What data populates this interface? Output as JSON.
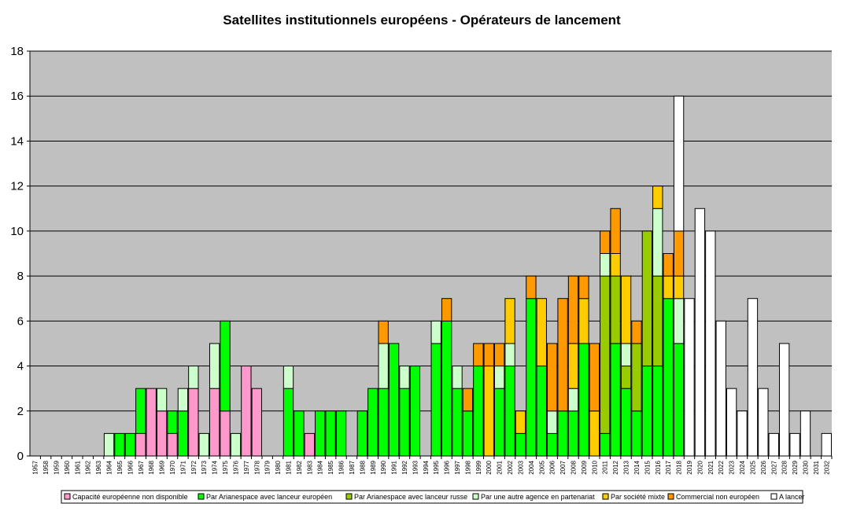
{
  "chart_data": {
    "type": "bar",
    "stacked": true,
    "title": "Satellites institutionnels européens - Opérateurs de lancement",
    "xlabel": "",
    "ylabel": "",
    "ylim": [
      0,
      18
    ],
    "yticks": [
      0,
      2,
      4,
      6,
      8,
      10,
      12,
      14,
      16,
      18
    ],
    "grid": true,
    "legend_position": "bottom",
    "plot_background": "#C0C0C0",
    "categories": [
      "1957",
      "1958",
      "1959",
      "1960",
      "1961",
      "1962",
      "1963",
      "1964",
      "1965",
      "1966",
      "1967",
      "1968",
      "1969",
      "1970",
      "1971",
      "1972",
      "1973",
      "1974",
      "1975",
      "1976",
      "1977",
      "1978",
      "1979",
      "1980",
      "1981",
      "1982",
      "1983",
      "1984",
      "1985",
      "1986",
      "1987",
      "1988",
      "1989",
      "1990",
      "1991",
      "1992",
      "1993",
      "1994",
      "1995",
      "1996",
      "1997",
      "1998",
      "1999",
      "2000",
      "2001",
      "2002",
      "2003",
      "2004",
      "2005",
      "2006",
      "2007",
      "2008",
      "2009",
      "2010",
      "2011",
      "2012",
      "2013",
      "2014",
      "2015",
      "2016",
      "2017",
      "2018",
      "2019",
      "2020",
      "2021",
      "2022",
      "2023",
      "2024",
      "2025",
      "2026",
      "2027",
      "2028",
      "2029",
      "2030",
      "2031",
      "2032"
    ],
    "series": [
      {
        "name": "Capacité européenne non disponible",
        "color": "#FF99CC",
        "values": [
          0,
          0,
          0,
          0,
          0,
          0,
          0,
          0,
          0,
          0,
          1,
          3,
          2,
          1,
          0,
          3,
          0,
          3,
          2,
          0,
          4,
          3,
          0,
          0,
          0,
          0,
          1,
          0,
          0,
          0,
          0,
          0,
          0,
          0,
          0,
          0,
          0,
          0,
          0,
          0,
          0,
          0,
          0,
          0,
          0,
          0,
          0,
          0,
          0,
          0,
          0,
          0,
          0,
          0,
          0,
          0,
          0,
          0,
          0,
          0,
          0,
          0,
          0,
          0,
          0,
          0,
          0,
          0,
          0,
          0,
          0,
          0,
          0,
          0,
          0,
          0
        ]
      },
      {
        "name": "Par Arianespace avec lanceur européen",
        "color": "#00FF00",
        "values": [
          0,
          0,
          0,
          0,
          0,
          0,
          0,
          0,
          1,
          1,
          2,
          0,
          0,
          1,
          2,
          0,
          0,
          0,
          4,
          0,
          0,
          0,
          0,
          0,
          3,
          2,
          0,
          2,
          2,
          2,
          0,
          2,
          3,
          3,
          5,
          3,
          4,
          0,
          5,
          6,
          3,
          2,
          4,
          0,
          3,
          4,
          1,
          7,
          4,
          1,
          2,
          2,
          5,
          0,
          1,
          5,
          3,
          2,
          4,
          4,
          7,
          5,
          0,
          0,
          0,
          0,
          0,
          0,
          0,
          0,
          0,
          0,
          0,
          0,
          0,
          0
        ]
      },
      {
        "name": "Par Arianespace avec lanceur russe",
        "color": "#99CC00",
        "values": [
          0,
          0,
          0,
          0,
          0,
          0,
          0,
          0,
          0,
          0,
          0,
          0,
          0,
          0,
          0,
          0,
          0,
          0,
          0,
          0,
          0,
          0,
          0,
          0,
          0,
          0,
          0,
          0,
          0,
          0,
          0,
          0,
          0,
          0,
          0,
          0,
          0,
          0,
          0,
          0,
          0,
          0,
          0,
          0,
          0,
          0,
          0,
          0,
          0,
          0,
          0,
          0,
          0,
          0,
          7,
          3,
          1,
          3,
          6,
          4,
          0,
          0,
          0,
          0,
          0,
          0,
          0,
          0,
          0,
          0,
          0,
          0,
          0,
          0,
          0,
          0
        ]
      },
      {
        "name": "Par une autre agence en partenariat",
        "color": "#CCFFCC",
        "values": [
          0,
          0,
          0,
          0,
          0,
          0,
          0,
          1,
          0,
          0,
          0,
          0,
          1,
          0,
          1,
          1,
          1,
          2,
          0,
          1,
          0,
          0,
          0,
          0,
          1,
          0,
          0,
          0,
          0,
          0,
          0,
          0,
          0,
          2,
          0,
          1,
          0,
          0,
          1,
          0,
          1,
          0,
          0,
          0,
          1,
          1,
          0,
          0,
          0,
          1,
          0,
          1,
          0,
          0,
          1,
          0,
          1,
          0,
          0,
          3,
          0,
          2,
          0,
          0,
          0,
          0,
          0,
          0,
          0,
          0,
          0,
          0,
          0,
          0,
          0,
          0
        ]
      },
      {
        "name": "Par société mixte",
        "color": "#FFCC00",
        "values": [
          0,
          0,
          0,
          0,
          0,
          0,
          0,
          0,
          0,
          0,
          0,
          0,
          0,
          0,
          0,
          0,
          0,
          0,
          0,
          0,
          0,
          0,
          0,
          0,
          0,
          0,
          0,
          0,
          0,
          0,
          0,
          0,
          0,
          0,
          0,
          0,
          0,
          0,
          0,
          0,
          0,
          0,
          0,
          4,
          0,
          2,
          1,
          0,
          3,
          0,
          0,
          2,
          2,
          2,
          0,
          1,
          3,
          0,
          0,
          1,
          1,
          1,
          0,
          0,
          0,
          0,
          0,
          0,
          0,
          0,
          0,
          0,
          0,
          0,
          0,
          0
        ]
      },
      {
        "name": "Commercial non européen",
        "color": "#FF9900",
        "values": [
          0,
          0,
          0,
          0,
          0,
          0,
          0,
          0,
          0,
          0,
          0,
          0,
          0,
          0,
          0,
          0,
          0,
          0,
          0,
          0,
          0,
          0,
          0,
          0,
          0,
          0,
          0,
          0,
          0,
          0,
          0,
          0,
          0,
          1,
          0,
          0,
          0,
          0,
          0,
          1,
          0,
          1,
          1,
          1,
          1,
          0,
          0,
          1,
          0,
          3,
          5,
          3,
          1,
          3,
          1,
          2,
          0,
          1,
          0,
          0,
          1,
          2,
          0,
          0,
          0,
          0,
          0,
          0,
          0,
          0,
          0,
          0,
          0,
          0,
          0,
          0
        ]
      },
      {
        "name": "A lancer",
        "color": "#FFFFFF",
        "values": [
          0,
          0,
          0,
          0,
          0,
          0,
          0,
          0,
          0,
          0,
          0,
          0,
          0,
          0,
          0,
          0,
          0,
          0,
          0,
          0,
          0,
          0,
          0,
          0,
          0,
          0,
          0,
          0,
          0,
          0,
          0,
          0,
          0,
          0,
          0,
          0,
          0,
          0,
          0,
          0,
          0,
          0,
          0,
          0,
          0,
          0,
          0,
          0,
          0,
          0,
          0,
          0,
          0,
          0,
          0,
          0,
          0,
          0,
          0,
          0,
          0,
          6,
          7,
          11,
          10,
          6,
          3,
          2,
          7,
          3,
          1,
          5,
          1,
          2,
          0,
          1
        ]
      }
    ]
  }
}
